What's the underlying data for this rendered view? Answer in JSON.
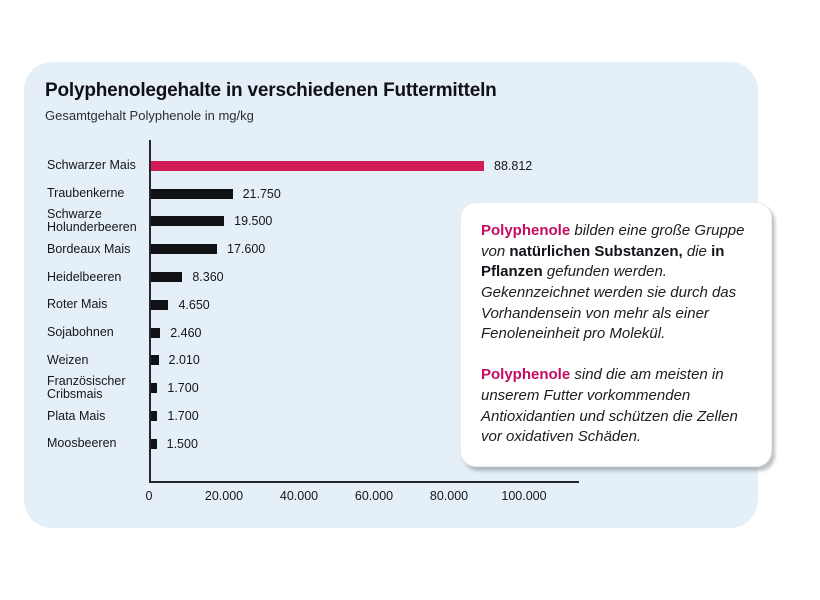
{
  "header": {
    "title": "Polyphenolegehalte in verschiedenen Futtermitteln",
    "subtitle": "Gesamtgehalt Polyphenole in mg/kg"
  },
  "colors": {
    "card_background": "#E5EFF7",
    "accent_bar_pink": "#D21C55",
    "accent_text_pink": "#C40D5E",
    "bar_black": "#101114",
    "axis": "#23272c"
  },
  "chart_data": {
    "type": "bar",
    "orientation": "horizontal",
    "title": "Polyphenolegehalte in verschiedenen Futtermitteln",
    "subtitle": "Gesamtgehalt Polyphenole in mg/kg",
    "unit": "mg/kg",
    "xlim": [
      0,
      100000
    ],
    "x_ticks": [
      "0",
      "20.000",
      "40.000",
      "60.000",
      "80.000",
      "100.000"
    ],
    "x_tick_values": [
      0,
      20000,
      40000,
      60000,
      80000,
      100000
    ],
    "grid": false,
    "legend": false,
    "categories": [
      "Schwarzer Mais",
      "Traubenkerne",
      "Schwarze Holunderbeeren",
      "Bordeaux Mais",
      "Heidelbeeren",
      "Roter Mais",
      "Sojabohnen",
      "Weizen",
      "Französischer Cribsmais",
      "Plata Mais",
      "Moosbeeren"
    ],
    "category_lines": [
      [
        "Schwarzer Mais"
      ],
      [
        "Traubenkerne"
      ],
      [
        "Schwarze",
        "Holunderbeeren"
      ],
      [
        "Bordeaux Mais"
      ],
      [
        "Heidelbeeren"
      ],
      [
        "Roter Mais"
      ],
      [
        "Sojabohnen"
      ],
      [
        "Weizen"
      ],
      [
        "Französischer",
        "Cribsmais"
      ],
      [
        "Plata Mais"
      ],
      [
        "Moosbeeren"
      ]
    ],
    "values": [
      88812,
      21750,
      19500,
      17600,
      8360,
      4650,
      2460,
      2010,
      1700,
      1700,
      1500
    ],
    "value_labels": [
      "88.812",
      "21.750",
      "19.500",
      "17.600",
      "8.360",
      "4.650",
      "2.460",
      "2.010",
      "1.700",
      "1.700",
      "1.500"
    ],
    "highlight_index": 0
  },
  "info_box": {
    "paragraphs": [
      {
        "segments": [
          {
            "text": "Polyphenole",
            "style": "brand"
          },
          {
            "text": " bilden eine große Gruppe von ",
            "style": "italic"
          },
          {
            "text": "natürlichen Substanzen,",
            "style": "bold"
          },
          {
            "text": " die ",
            "style": "italic"
          },
          {
            "text": "in Pflanzen",
            "style": "bold"
          },
          {
            "text": " gefunden werden. Gekennzeichnet werden sie durch das Vorhandensein von mehr als einer Fenoleneinheit pro Molekül.",
            "style": "italic"
          }
        ]
      },
      {
        "segments": [
          {
            "text": "Polyphenole",
            "style": "brand"
          },
          {
            "text": " sind die am meisten in unserem Futter vorkommenden Antioxidantien und schützen die Zellen vor oxidativen Schäden.",
            "style": "italic"
          }
        ]
      }
    ]
  }
}
